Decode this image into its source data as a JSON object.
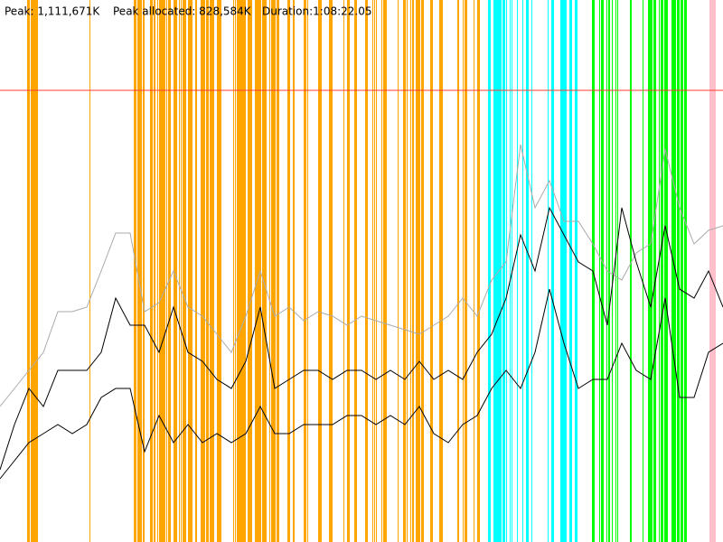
{
  "header": {
    "peak": "Peak: 1,111,671K",
    "peak_allocated": "Peak allocated: 828,584K",
    "duration": "Duration:1:08:22.05"
  },
  "chart_data": {
    "type": "line",
    "ylim": [
      0,
      1334005
    ],
    "peak": 1111671,
    "peak_color": "#ff3b30",
    "series": [
      {
        "name": null,
        "color": "#aaaaaa",
        "values": [
          333501,
          377968,
          422435,
          466901,
          566952,
          566952,
          578068,
          667002,
          760382,
          760382,
          566952,
          589185,
          667002,
          578068,
          555835,
          511368,
          466901,
          555835,
          667002,
          555835,
          578068,
          544718,
          566952,
          555835,
          533602,
          555835,
          544718,
          533602,
          522485,
          511368,
          533602,
          555835,
          600302,
          555835,
          644769,
          689235,
          978270,
          822636,
          889336,
          789286,
          789286,
          733702,
          667002,
          644769,
          711469,
          733702,
          967153,
          822636,
          733702,
          767052,
          778169
        ]
      },
      {
        "name": null,
        "color": "#000000",
        "values": [
          177867,
          289034,
          377968,
          333501,
          422435,
          422435,
          422435,
          466901,
          600302,
          533602,
          533602,
          466901,
          578068,
          466901,
          444668,
          400201,
          377968,
          444668,
          578068,
          377968,
          400201,
          422435,
          422435,
          400201,
          422435,
          422435,
          400201,
          422435,
          400201,
          444668,
          400201,
          422435,
          400201,
          466901,
          511368,
          600302,
          755936,
          667002,
          822636,
          755936,
          689235,
          667002,
          533602,
          822636,
          689235,
          578068,
          778169,
          622535,
          600302,
          667002,
          578068
        ]
      },
      {
        "name": null,
        "color": "#000000",
        "values": [
          155634,
          200100,
          244567,
          266801,
          289034,
          266801,
          289034,
          355734,
          377968,
          377968,
          222334,
          311268,
          244567,
          289034,
          244567,
          266801,
          244567,
          266801,
          333501,
          266801,
          266801,
          289034,
          289034,
          289034,
          311268,
          311268,
          289034,
          311268,
          289034,
          333501,
          266801,
          244567,
          289034,
          311268,
          377968,
          422435,
          377968,
          466901,
          622535,
          489134,
          377968,
          400201,
          400201,
          489134,
          422435,
          400201,
          600302,
          355734,
          355734,
          466901,
          489134
        ]
      }
    ]
  }
}
